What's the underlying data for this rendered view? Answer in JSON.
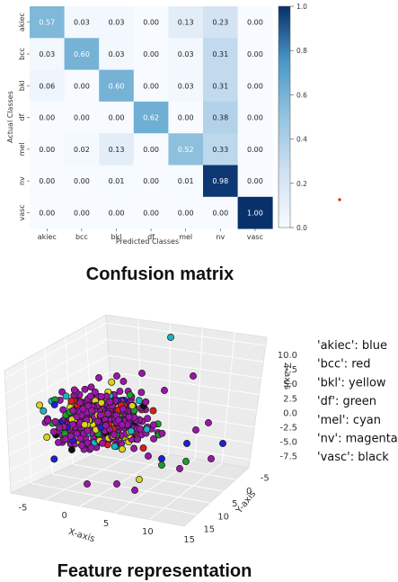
{
  "confusion_caption": "Confusion matrix",
  "feature_caption": "Feature representation",
  "chart_data": [
    {
      "type": "heatmap",
      "xlabel": "Predicted Classes",
      "ylabel": "Actual Classes",
      "x_categories": [
        "akiec",
        "bcc",
        "bkl",
        "df",
        "mel",
        "nv",
        "vasc"
      ],
      "y_categories": [
        "akiec",
        "bcc",
        "bkl",
        "df",
        "mel",
        "nv",
        "vasc"
      ],
      "values": [
        [
          0.57,
          0.03,
          0.03,
          0.0,
          0.13,
          0.23,
          0.0
        ],
        [
          0.03,
          0.6,
          0.03,
          0.0,
          0.03,
          0.31,
          0.0
        ],
        [
          0.06,
          0.0,
          0.6,
          0.0,
          0.03,
          0.31,
          0.0
        ],
        [
          0.0,
          0.0,
          0.0,
          0.62,
          0.0,
          0.38,
          0.0
        ],
        [
          0.0,
          0.02,
          0.13,
          0.0,
          0.52,
          0.33,
          0.0
        ],
        [
          0.0,
          0.0,
          0.01,
          0.0,
          0.01,
          0.98,
          0.0
        ],
        [
          0.0,
          0.0,
          0.0,
          0.0,
          0.0,
          0.0,
          1.0
        ]
      ],
      "colorbar": {
        "min": 0.0,
        "max": 1.0,
        "ticks": [
          "0.0",
          "0.2",
          "0.4",
          "0.6",
          "0.8",
          "1.0"
        ],
        "colormap": "Blues"
      }
    },
    {
      "type": "scatter",
      "xlabel": "X-axis",
      "ylabel": "Y-axis",
      "zlabel": "Z-axis",
      "x_ticks": [
        "-5",
        "0",
        "5",
        "10",
        "15"
      ],
      "y_ticks": [
        "-5",
        "0",
        "5",
        "10",
        "15"
      ],
      "z_ticks": [
        "10.0",
        "7.5",
        "5.0",
        "2.5",
        "0.0",
        "-2.5",
        "-5.0",
        "-7.5"
      ],
      "legend": [
        {
          "label": "'akiec': blue",
          "color": "#1f1fd6"
        },
        {
          "label": "'bcc': red",
          "color": "#e01b1b"
        },
        {
          "label": "'bkl': yellow",
          "color": "#d8d41a"
        },
        {
          "label": "'df': green",
          "color": "#1b9e2a"
        },
        {
          "label": "'mel': cyan",
          "color": "#1bb5c2"
        },
        {
          "label": "'nv': magenta",
          "color": "#9b16a8"
        },
        {
          "label": "'vasc': black",
          "color": "#111111"
        }
      ]
    }
  ]
}
